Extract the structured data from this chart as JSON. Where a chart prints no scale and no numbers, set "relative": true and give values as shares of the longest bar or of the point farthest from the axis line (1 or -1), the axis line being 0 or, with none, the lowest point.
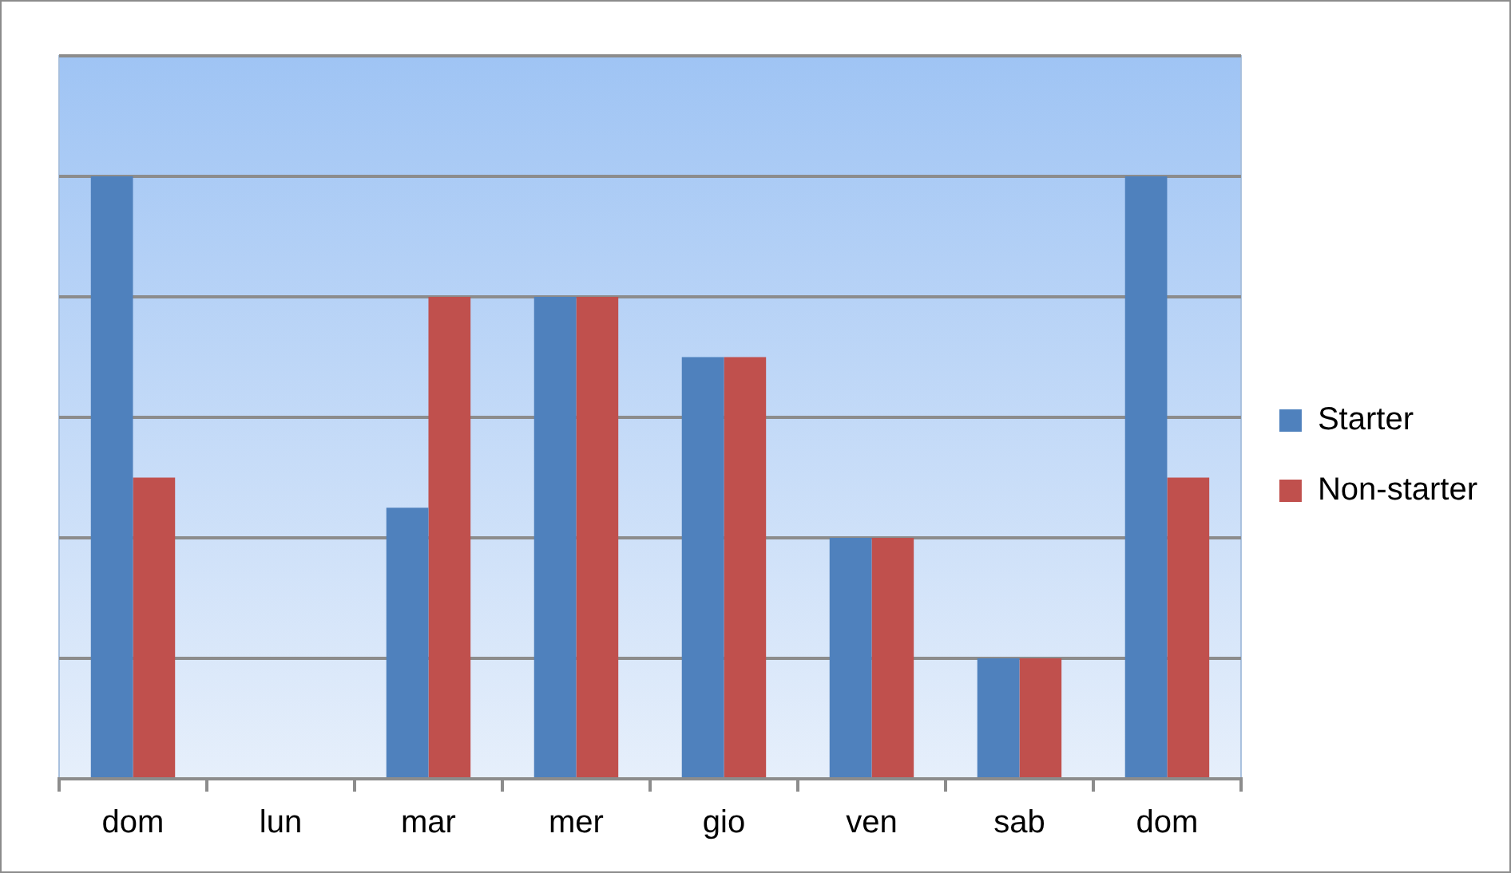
{
  "chart_data": {
    "type": "bar",
    "relative": true,
    "categories": [
      "dom",
      "lun",
      "mar",
      "mer",
      "gio",
      "ven",
      "sab",
      "dom"
    ],
    "series": [
      {
        "name": "Starter",
        "color": "#4f81bd",
        "values": [
          1,
          0,
          0.45,
          0.8,
          0.7,
          0.4,
          0.2,
          1
        ]
      },
      {
        "name": "Non-starter",
        "color": "#c0504d",
        "values": [
          0.5,
          0,
          0.8,
          0.8,
          0.7,
          0.4,
          0.2,
          0.5
        ]
      }
    ],
    "grid": "y",
    "legend": "right"
  }
}
